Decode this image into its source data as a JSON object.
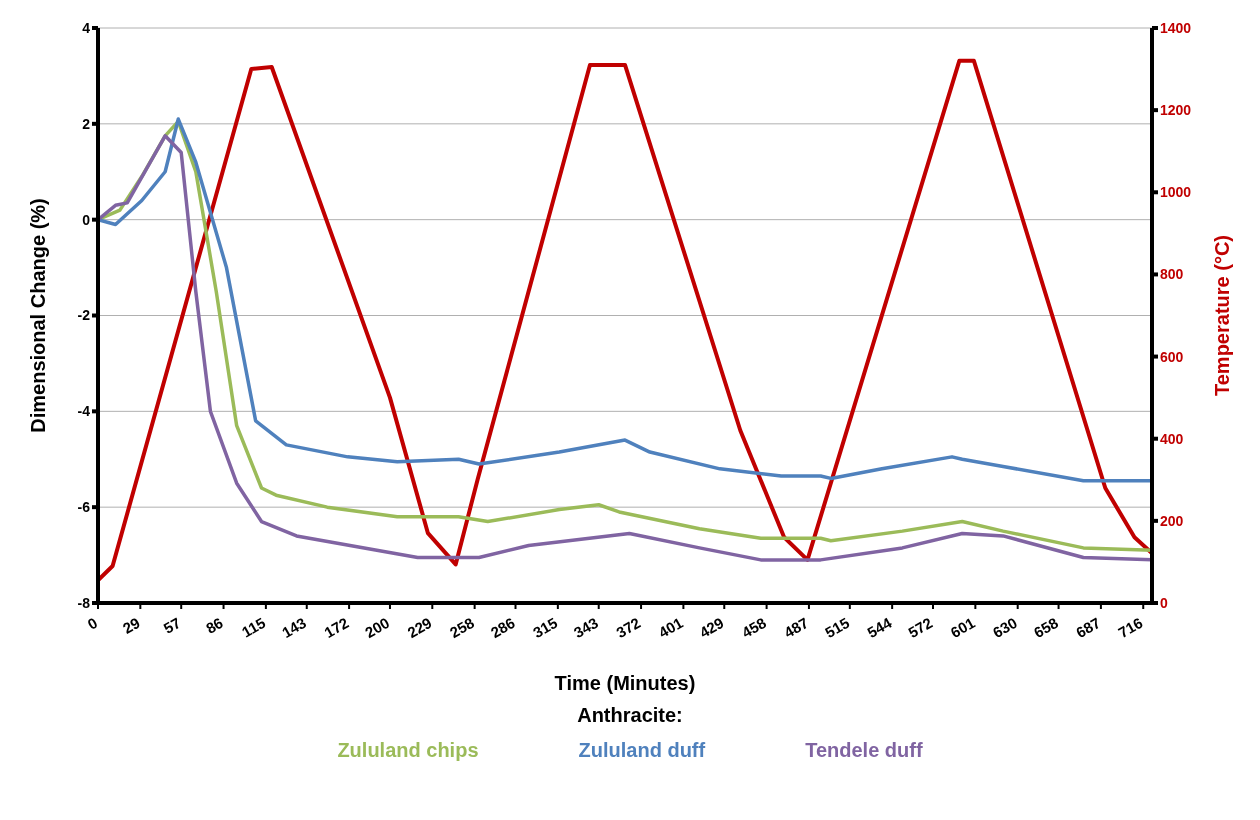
{
  "chart_data": {
    "type": "line",
    "xlabel": "Time (Minutes)",
    "ylabel": "Dimensional Change (%)",
    "y2label": "Temperature (°C)",
    "legend_title": "Anthracite:",
    "xlim": [
      0,
      722
    ],
    "xticks": [
      0,
      29,
      57,
      86,
      115,
      143,
      172,
      200,
      229,
      258,
      286,
      315,
      343,
      372,
      401,
      429,
      458,
      487,
      515,
      544,
      572,
      601,
      630,
      658,
      687,
      716
    ],
    "ylim": [
      -8,
      4
    ],
    "yticks": [
      -8,
      -6,
      -4,
      -2,
      0,
      2,
      4
    ],
    "y2lim": [
      0,
      1400
    ],
    "y2ticks": [
      0,
      200,
      400,
      600,
      800,
      1000,
      1200,
      1400
    ],
    "grid": "y",
    "legend": "bottom",
    "marker": "none",
    "line_style": "solid",
    "series": [
      {
        "name": "Zululand chips",
        "color": "#9bbb59",
        "x": [
          0,
          15,
          30,
          46,
          55,
          67,
          81,
          95,
          112,
          122,
          157,
          205,
          247,
          267,
          316,
          343,
          357,
          412,
          454,
          495,
          502,
          551,
          592,
          620,
          675,
          722
        ],
        "values": [
          0,
          0.2,
          0.9,
          1.75,
          2.05,
          1.0,
          -1.5,
          -4.3,
          -5.6,
          -5.75,
          -6.0,
          -6.2,
          -6.2,
          -6.3,
          -6.05,
          -5.95,
          -6.1,
          -6.45,
          -6.65,
          -6.65,
          -6.7,
          -6.5,
          -6.3,
          -6.5,
          -6.85,
          -6.9
        ]
      },
      {
        "name": "Zululand duff",
        "color": "#4f81bd",
        "x": [
          0,
          12,
          30,
          46,
          55,
          67,
          88,
          108,
          129,
          171,
          205,
          247,
          261,
          316,
          361,
          378,
          426,
          468,
          495,
          502,
          537,
          585,
          592,
          620,
          675,
          722
        ],
        "values": [
          0,
          -0.1,
          0.4,
          1.0,
          2.1,
          1.2,
          -1.0,
          -4.2,
          -4.7,
          -4.95,
          -5.05,
          -5.0,
          -5.1,
          -4.85,
          -4.6,
          -4.85,
          -5.2,
          -5.35,
          -5.35,
          -5.4,
          -5.2,
          -4.95,
          -5.0,
          -5.15,
          -5.45,
          -5.45
        ]
      },
      {
        "name": "Tendele duff",
        "color": "#8064a2",
        "x": [
          0,
          12,
          20,
          46,
          57,
          67,
          77,
          95,
          112,
          136,
          191,
          219,
          261,
          295,
          364,
          412,
          454,
          495,
          551,
          592,
          620,
          675,
          722
        ],
        "values": [
          0,
          0.3,
          0.35,
          1.75,
          1.4,
          -1.5,
          -4.0,
          -5.5,
          -6.3,
          -6.6,
          -6.9,
          -7.05,
          -7.05,
          -6.8,
          -6.55,
          -6.85,
          -7.1,
          -7.1,
          -6.85,
          -6.55,
          -6.6,
          -7.05,
          -7.1
        ]
      },
      {
        "color": "#c00000",
        "axis": "y2",
        "x": [
          0,
          10,
          105,
          119,
          200,
          226,
          245,
          260,
          337,
          361,
          440,
          470,
          486,
          590,
          600,
          690,
          710,
          722
        ],
        "values": [
          55,
          90,
          1300,
          1305,
          500,
          170,
          94,
          300,
          1310,
          1310,
          420,
          160,
          105,
          1320,
          1320,
          280,
          160,
          121
        ]
      }
    ]
  }
}
